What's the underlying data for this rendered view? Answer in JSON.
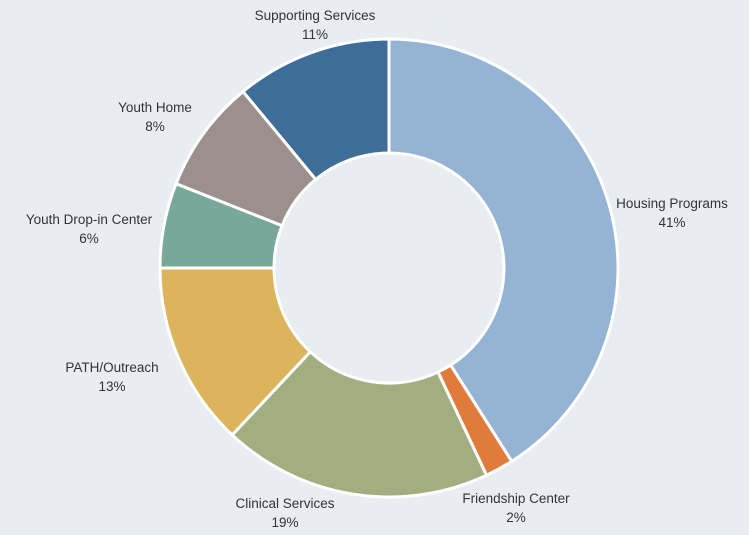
{
  "chart_data": {
    "type": "pie",
    "style": "donut",
    "title": "",
    "slices": [
      {
        "label": "Housing Programs",
        "value": 41,
        "value_label": "41%",
        "color": "#95b3d2"
      },
      {
        "label": "Friendship Center",
        "value": 2,
        "value_label": "2%",
        "color": "#e07b3c"
      },
      {
        "label": "Clinical Services",
        "value": 19,
        "value_label": "19%",
        "color": "#a3ad80"
      },
      {
        "label": "PATH/Outreach",
        "value": 13,
        "value_label": "13%",
        "color": "#dcb45c"
      },
      {
        "label": "Youth Drop-in Center",
        "value": 6,
        "value_label": "6%",
        "color": "#77a89a"
      },
      {
        "label": "Youth Home",
        "value": 8,
        "value_label": "8%",
        "color": "#9b908c"
      },
      {
        "label": "Supporting Services",
        "value": 11,
        "value_label": "11%",
        "color": "#3e6d99"
      }
    ]
  }
}
